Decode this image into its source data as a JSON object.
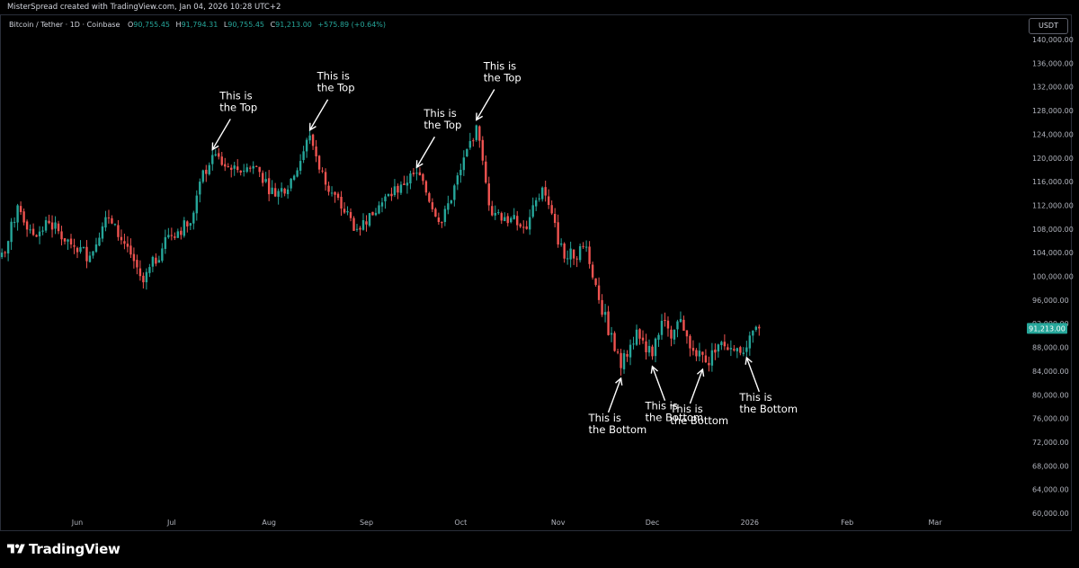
{
  "header": {
    "credit": "MisterSpread created with TradingView.com, Jan 04, 2026 10:28 UTC+2"
  },
  "legend": {
    "symbol": "Bitcoin / Tether · 1D · Coinbase",
    "open_label": "O",
    "open": "90,755.45",
    "high_label": "H",
    "high": "91,794.31",
    "low_label": "L",
    "low": "90,755.45",
    "close_label": "C",
    "close": "91,213.00",
    "change": "+575.89 (+0.64%)"
  },
  "currency": "USDT",
  "brand": "TradingView",
  "colors": {
    "up": "#26a69a",
    "down": "#ef5350",
    "background": "#000000",
    "price_tag": "#26a69a"
  },
  "chart_data": {
    "type": "candlestick",
    "title": "Bitcoin / Tether · 1D · Coinbase",
    "y_axis": {
      "range": [
        60000,
        140000
      ],
      "ticks": [
        {
          "value": 140000,
          "label": "140,000.00"
        },
        {
          "value": 136000,
          "label": "136,000.00"
        },
        {
          "value": 132000,
          "label": "132,000.00"
        },
        {
          "value": 128000,
          "label": "128,000.00"
        },
        {
          "value": 124000,
          "label": "124,000.00"
        },
        {
          "value": 120000,
          "label": "120,000.00"
        },
        {
          "value": 116000,
          "label": "116,000.00"
        },
        {
          "value": 112000,
          "label": "112,000.00"
        },
        {
          "value": 108000,
          "label": "108,000.00"
        },
        {
          "value": 104000,
          "label": "104,000.00"
        },
        {
          "value": 100000,
          "label": "100,000.00"
        },
        {
          "value": 96000,
          "label": "96,000.00"
        },
        {
          "value": 92000,
          "label": "92,000.00"
        },
        {
          "value": 88000,
          "label": "88,000.00"
        },
        {
          "value": 84000,
          "label": "84,000.00"
        },
        {
          "value": 80000,
          "label": "80,000.00"
        },
        {
          "value": 76000,
          "label": "76,000.00"
        },
        {
          "value": 72000,
          "label": "72,000.00"
        },
        {
          "value": 68000,
          "label": "68,000.00"
        },
        {
          "value": 64000,
          "label": "64,000.00"
        },
        {
          "value": 60000,
          "label": "60,000.00"
        }
      ]
    },
    "x_axis": {
      "ticks": [
        {
          "label": "Jun",
          "date": "2025-06-01"
        },
        {
          "label": "Jul",
          "date": "2025-07-01"
        },
        {
          "label": "Aug",
          "date": "2025-08-01"
        },
        {
          "label": "Sep",
          "date": "2025-09-01"
        },
        {
          "label": "Oct",
          "date": "2025-10-01"
        },
        {
          "label": "Nov",
          "date": "2025-11-01"
        },
        {
          "label": "Dec",
          "date": "2025-12-01"
        },
        {
          "label": "2026",
          "date": "2026-01-01"
        },
        {
          "label": "Feb",
          "date": "2026-02-01"
        },
        {
          "label": "Mar",
          "date": "2026-03-01"
        }
      ]
    },
    "last_price": {
      "value": 91213,
      "label": "91,213.00"
    },
    "close_path": [
      {
        "date": "2025-05-04",
        "close": 102000
      },
      {
        "date": "2025-05-09",
        "close": 104000
      },
      {
        "date": "2025-05-13",
        "close": 112000
      },
      {
        "date": "2025-05-18",
        "close": 107000
      },
      {
        "date": "2025-05-23",
        "close": 109000
      },
      {
        "date": "2025-05-31",
        "close": 105000
      },
      {
        "date": "2025-06-05",
        "close": 103500
      },
      {
        "date": "2025-06-10",
        "close": 110000
      },
      {
        "date": "2025-06-17",
        "close": 105000
      },
      {
        "date": "2025-06-22",
        "close": 99000
      },
      {
        "date": "2025-06-30",
        "close": 107000
      },
      {
        "date": "2025-07-07",
        "close": 109000
      },
      {
        "date": "2025-07-10",
        "close": 116000
      },
      {
        "date": "2025-07-14",
        "close": 120500
      },
      {
        "date": "2025-07-20",
        "close": 118000
      },
      {
        "date": "2025-07-28",
        "close": 118500
      },
      {
        "date": "2025-08-03",
        "close": 113500
      },
      {
        "date": "2025-08-09",
        "close": 117000
      },
      {
        "date": "2025-08-14",
        "close": 123800
      },
      {
        "date": "2025-08-19",
        "close": 115500
      },
      {
        "date": "2025-08-29",
        "close": 108000
      },
      {
        "date": "2025-09-05",
        "close": 112000
      },
      {
        "date": "2025-09-12",
        "close": 115500
      },
      {
        "date": "2025-09-17",
        "close": 117500
      },
      {
        "date": "2025-09-25",
        "close": 109000
      },
      {
        "date": "2025-10-01",
        "close": 118000
      },
      {
        "date": "2025-10-06",
        "close": 125500
      },
      {
        "date": "2025-10-10",
        "close": 112000
      },
      {
        "date": "2025-10-15",
        "close": 110000
      },
      {
        "date": "2025-10-22",
        "close": 108000
      },
      {
        "date": "2025-10-27",
        "close": 115000
      },
      {
        "date": "2025-11-03",
        "close": 103000
      },
      {
        "date": "2025-11-10",
        "close": 105000
      },
      {
        "date": "2025-11-14",
        "close": 96000
      },
      {
        "date": "2025-11-21",
        "close": 84500
      },
      {
        "date": "2025-11-26",
        "close": 91000
      },
      {
        "date": "2025-12-01",
        "close": 86500
      },
      {
        "date": "2025-12-04",
        "close": 92500
      },
      {
        "date": "2025-12-07",
        "close": 89500
      },
      {
        "date": "2025-12-10",
        "close": 92800
      },
      {
        "date": "2025-12-15",
        "close": 86500
      },
      {
        "date": "2025-12-18",
        "close": 85500
      },
      {
        "date": "2025-12-22",
        "close": 88500
      },
      {
        "date": "2025-12-27",
        "close": 87500
      },
      {
        "date": "2025-12-31",
        "close": 88000
      },
      {
        "date": "2026-01-04",
        "close": 91213
      }
    ],
    "annotations": [
      {
        "line1": "This is",
        "line2": "the Top",
        "date": "2025-07-14",
        "price": 120500,
        "type": "top"
      },
      {
        "line1": "This is",
        "line2": "the Top",
        "date": "2025-08-14",
        "price": 123800,
        "type": "top"
      },
      {
        "line1": "This is",
        "line2": "the Top",
        "date": "2025-09-17",
        "price": 117500,
        "type": "top"
      },
      {
        "line1": "This is",
        "line2": "the Top",
        "date": "2025-10-06",
        "price": 125500,
        "type": "top"
      },
      {
        "line1": "This is",
        "line2": "the Bottom",
        "date": "2025-11-21",
        "price": 84000,
        "type": "bottom"
      },
      {
        "line1": "This is",
        "line2": "the Bottom",
        "date": "2025-12-01",
        "price": 86000,
        "type": "bottom"
      },
      {
        "line1": "This is",
        "line2": "the Bottom",
        "date": "2025-12-17",
        "price": 85500,
        "type": "bottom"
      },
      {
        "line1": "This is",
        "line2": "the Bottom",
        "date": "2025-12-31",
        "price": 87500,
        "type": "bottom"
      }
    ]
  }
}
